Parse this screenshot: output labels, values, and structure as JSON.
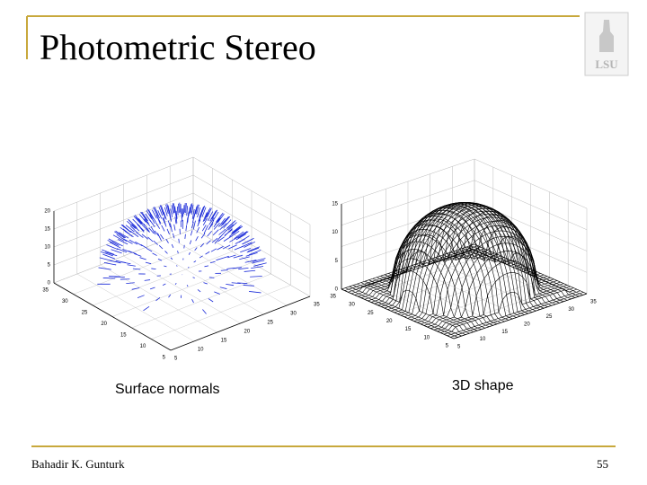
{
  "header": {
    "title": "Photometric Stereo",
    "logo": "LSU"
  },
  "figures": [
    {
      "caption": "Surface normals",
      "z_ticks": [
        20,
        15,
        10,
        5,
        0
      ],
      "y_ticks": [
        35,
        30,
        25,
        20,
        15,
        10,
        5
      ],
      "x_ticks": [
        5,
        10,
        15,
        20,
        25,
        30,
        35
      ]
    },
    {
      "caption": "3D shape",
      "z_ticks": [
        15,
        10,
        5,
        0
      ],
      "y_ticks": [
        35,
        30,
        25,
        20,
        15,
        10,
        5
      ],
      "x_ticks": [
        5,
        10,
        15,
        20,
        25,
        30,
        35
      ]
    }
  ],
  "footer": {
    "author": "Bahadir K. Gunturk",
    "page": 55
  }
}
